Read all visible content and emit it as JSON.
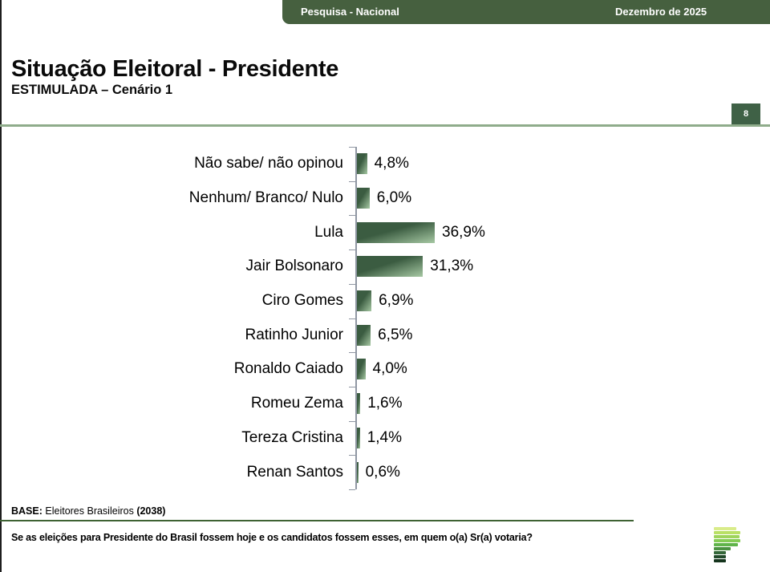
{
  "header": {
    "left_label": "Pesquisa - Nacional",
    "right_label": "Dezembro de 2025"
  },
  "title": "Situação Eleitoral - Presidente",
  "subtitle": "ESTIMULADA – Cenário 1",
  "page_number": "8",
  "chart_data": {
    "type": "bar",
    "orientation": "horizontal",
    "categories": [
      "Não sabe/ não opinou",
      "Nenhum/ Branco/ Nulo",
      "Lula",
      "Jair Bolsonaro",
      "Ciro Gomes",
      "Ratinho Junior",
      "Ronaldo Caiado",
      "Romeu Zema",
      "Tereza Cristina",
      "Renan Santos"
    ],
    "values": [
      4.8,
      6.0,
      36.9,
      31.3,
      6.9,
      6.5,
      4.0,
      1.6,
      1.4,
      0.6
    ],
    "value_labels": [
      "4,8%",
      "6,0%",
      "36,9%",
      "31,3%",
      "6,9%",
      "6,5%",
      "4,0%",
      "1,6%",
      "1,4%",
      "0,6%"
    ],
    "xlim": [
      0,
      40
    ],
    "grid": false,
    "legend": false,
    "bar_color_dark": "#3B5C41",
    "bar_color_light": "#A6C8A3",
    "axis_color": "#9097A3"
  },
  "base_note": {
    "prefix": "BASE:",
    "text": " Eleitores Brasileiros ",
    "count": "(2038)"
  },
  "question": "Se as eleições para Presidente do Brasil fossem hoje e os candidatos fossem esses, em quem o(a) Sr(a) votaria?",
  "colors": {
    "header_green": "#46603F",
    "badge_green": "#3F6146",
    "title_divider": "#8FAC8B",
    "footer_divider": "#3E6233",
    "left_border": "#1e1e1e"
  },
  "logo": {
    "name": "parana-pesquisas-logo",
    "bars": [
      {
        "width": 28,
        "color": "#D9EC8A"
      },
      {
        "width": 33,
        "color": "#B9E066"
      },
      {
        "width": 32,
        "color": "#9ED45C"
      },
      {
        "width": 33,
        "color": "#85CC55"
      },
      {
        "width": 30,
        "color": "#60B44A"
      },
      {
        "width": 21,
        "color": "#4B9341"
      },
      {
        "width": 15,
        "color": "#346739"
      },
      {
        "width": 15,
        "color": "#224A2A"
      },
      {
        "width": 15,
        "color": "#15341D"
      }
    ]
  }
}
